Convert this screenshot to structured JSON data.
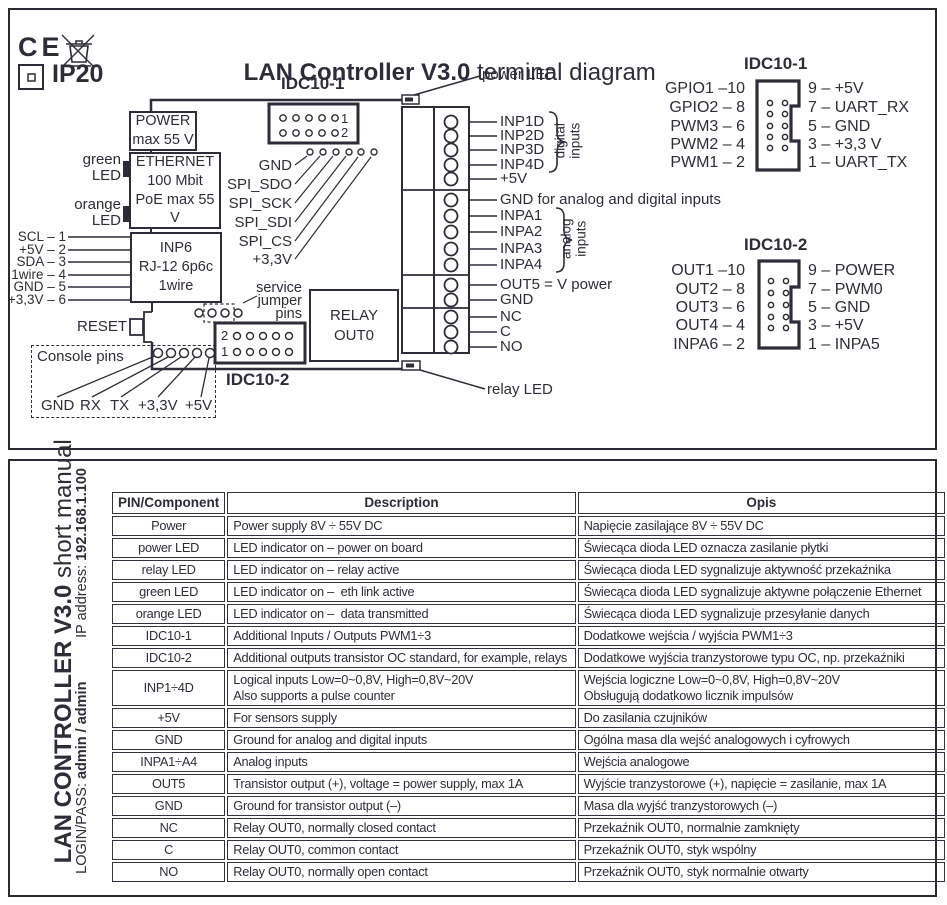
{
  "colors": {
    "ink": "#2d2d3a"
  },
  "header": {
    "ce": "CE",
    "ip": "IP20",
    "title_bold": "LAN Controller V3.0",
    "title_rest": " terminal diagram"
  },
  "board": {
    "idc1_title": "IDC10-1",
    "idc2_title": "IDC10-2",
    "idc1_row1_num": "1",
    "idc1_row2_num": "2",
    "idc2_row1_num": "2",
    "idc2_row2_num": "1",
    "power_box": [
      "POWER",
      "max 55 V"
    ],
    "eth_box": [
      "ETHERNET",
      "100 Mbit",
      "PoE max 55 V"
    ],
    "inp6_box": [
      "INP6",
      "RJ-12 6p6c",
      "1wire"
    ],
    "relay_box": [
      "RELAY",
      "OUT0"
    ],
    "green_led": "green\nLED",
    "orange_led": "orange\nLED",
    "reset": "RESET",
    "power_led": "power LED",
    "relay_led": "relay LED",
    "rj12_pins": [
      "SCL – 1",
      "+5V – 2",
      "SDA – 3",
      "1wire – 4",
      "GND – 5",
      "+3,3V – 6"
    ],
    "spi_pins": [
      "GND",
      "SPI_SDO",
      "SPI_SCK",
      "SPI_SDI",
      "SPI_CS",
      "+3,3V"
    ],
    "service": [
      "service",
      "jumper",
      "pins"
    ],
    "console_title": "Console pins",
    "console_pins": [
      "GND",
      "RX",
      "TX",
      "+3,3V",
      "+5V"
    ]
  },
  "terminals": {
    "labels": [
      "INP1D",
      "INP2D",
      "INP3D",
      "INP4D",
      "+5V",
      "GND for analog and digital inputs",
      "INPA1",
      "INPA2",
      "INPA3",
      "INPA4",
      "OUT5 = V power",
      "GND",
      "NC",
      "C",
      "NO"
    ],
    "digital_group": [
      "digital",
      "inputs"
    ],
    "analog_group": [
      "analog",
      "inputs"
    ]
  },
  "idc1_map": {
    "title": "IDC10-1",
    "left": [
      "GPIO1 –10",
      "GPIO2 – 8",
      "PWM3 – 6",
      "PWM2 – 4",
      "PWM1 – 2"
    ],
    "right": [
      "9 – +5V",
      "7 – UART_RX",
      "5 – GND",
      "3 – +3,3 V",
      "1 – UART_TX"
    ]
  },
  "idc2_map": {
    "title": "IDC10-2",
    "left": [
      "OUT1 –10",
      "OUT2 – 8",
      "OUT3 – 6",
      "OUT4 – 4",
      "INPA6 – 2"
    ],
    "right": [
      "9 – POWER",
      "7 – PWM0",
      "5 – GND",
      "3 – +5V",
      "1 – INPA5"
    ]
  },
  "sidebar": {
    "title_bold": "LAN CONTROLLER V3.0",
    "title_rest": " short manual",
    "login_label": "LOGIN/PASS: ",
    "login_value": "admin / admin",
    "ip_label": "IP address: ",
    "ip_value": "192.168.1.100"
  },
  "table": {
    "headers": [
      "PIN/Component",
      "Description",
      "Opis"
    ],
    "rows": [
      [
        "Power",
        "Power supply 8V ÷ 55V DC",
        "Napięcie zasilające 8V ÷ 55V DC"
      ],
      [
        "power LED",
        "LED indicator on – power on board",
        "Świecąca dioda LED oznacza zasilanie płytki"
      ],
      [
        "relay LED",
        "LED indicator on – relay active",
        "Świecąca dioda LED sygnalizuje aktywność przekaźnika"
      ],
      [
        "green LED",
        "LED indicator on –  eth link active",
        "Świecąca dioda LED sygnalizuje aktywne połączenie Ethernet"
      ],
      [
        "orange LED",
        "LED indicator on –  data transmitted",
        "Świecąca dioda LED sygnalizuje przesyłanie danych"
      ],
      [
        "IDC10-1",
        "Additional Inputs / Outputs PWM1÷3",
        "Dodatkowe wejścia / wyjścia PWM1÷3"
      ],
      [
        "IDC10-2",
        "Additional outputs transistor OC standard, for example, relays",
        "Dodatkowe wyjścia tranzystorowe typu OC, np. przekaźniki"
      ],
      [
        "INP1÷4D",
        "Logical inputs Low=0~0,8V, High=0,8V~20V\nAlso supports a pulse counter",
        "Wejścia logiczne Low=0~0,8V, High=0,8V~20V\nObsługują dodatkowo licznik impulsów"
      ],
      [
        "+5V",
        "For sensors supply",
        "Do zasilania czujników"
      ],
      [
        "GND",
        "Ground for analog and digital inputs",
        "Ogólna masa dla wejść analogowych i cyfrowych"
      ],
      [
        "INPA1÷A4",
        "Analog inputs",
        "Wejścia analogowe"
      ],
      [
        "OUT5",
        "Transistor output (+), voltage = power supply, max 1A",
        "Wyjście tranzystorowe (+), napięcie = zasilanie, max 1A"
      ],
      [
        "GND",
        "Ground for transistor output (–)",
        "Masa dla wyjść tranzystorowych (–)"
      ],
      [
        "NC",
        "Relay OUT0, normally closed contact",
        "Przekaźnik OUT0, normalnie zamknięty"
      ],
      [
        "C",
        "Relay OUT0, common contact",
        "Przekaźnik OUT0, styk wspólny"
      ],
      [
        "NO",
        "Relay OUT0, normally open contact",
        "Przekaźnik OUT0, styk normalnie otwarty"
      ]
    ]
  }
}
